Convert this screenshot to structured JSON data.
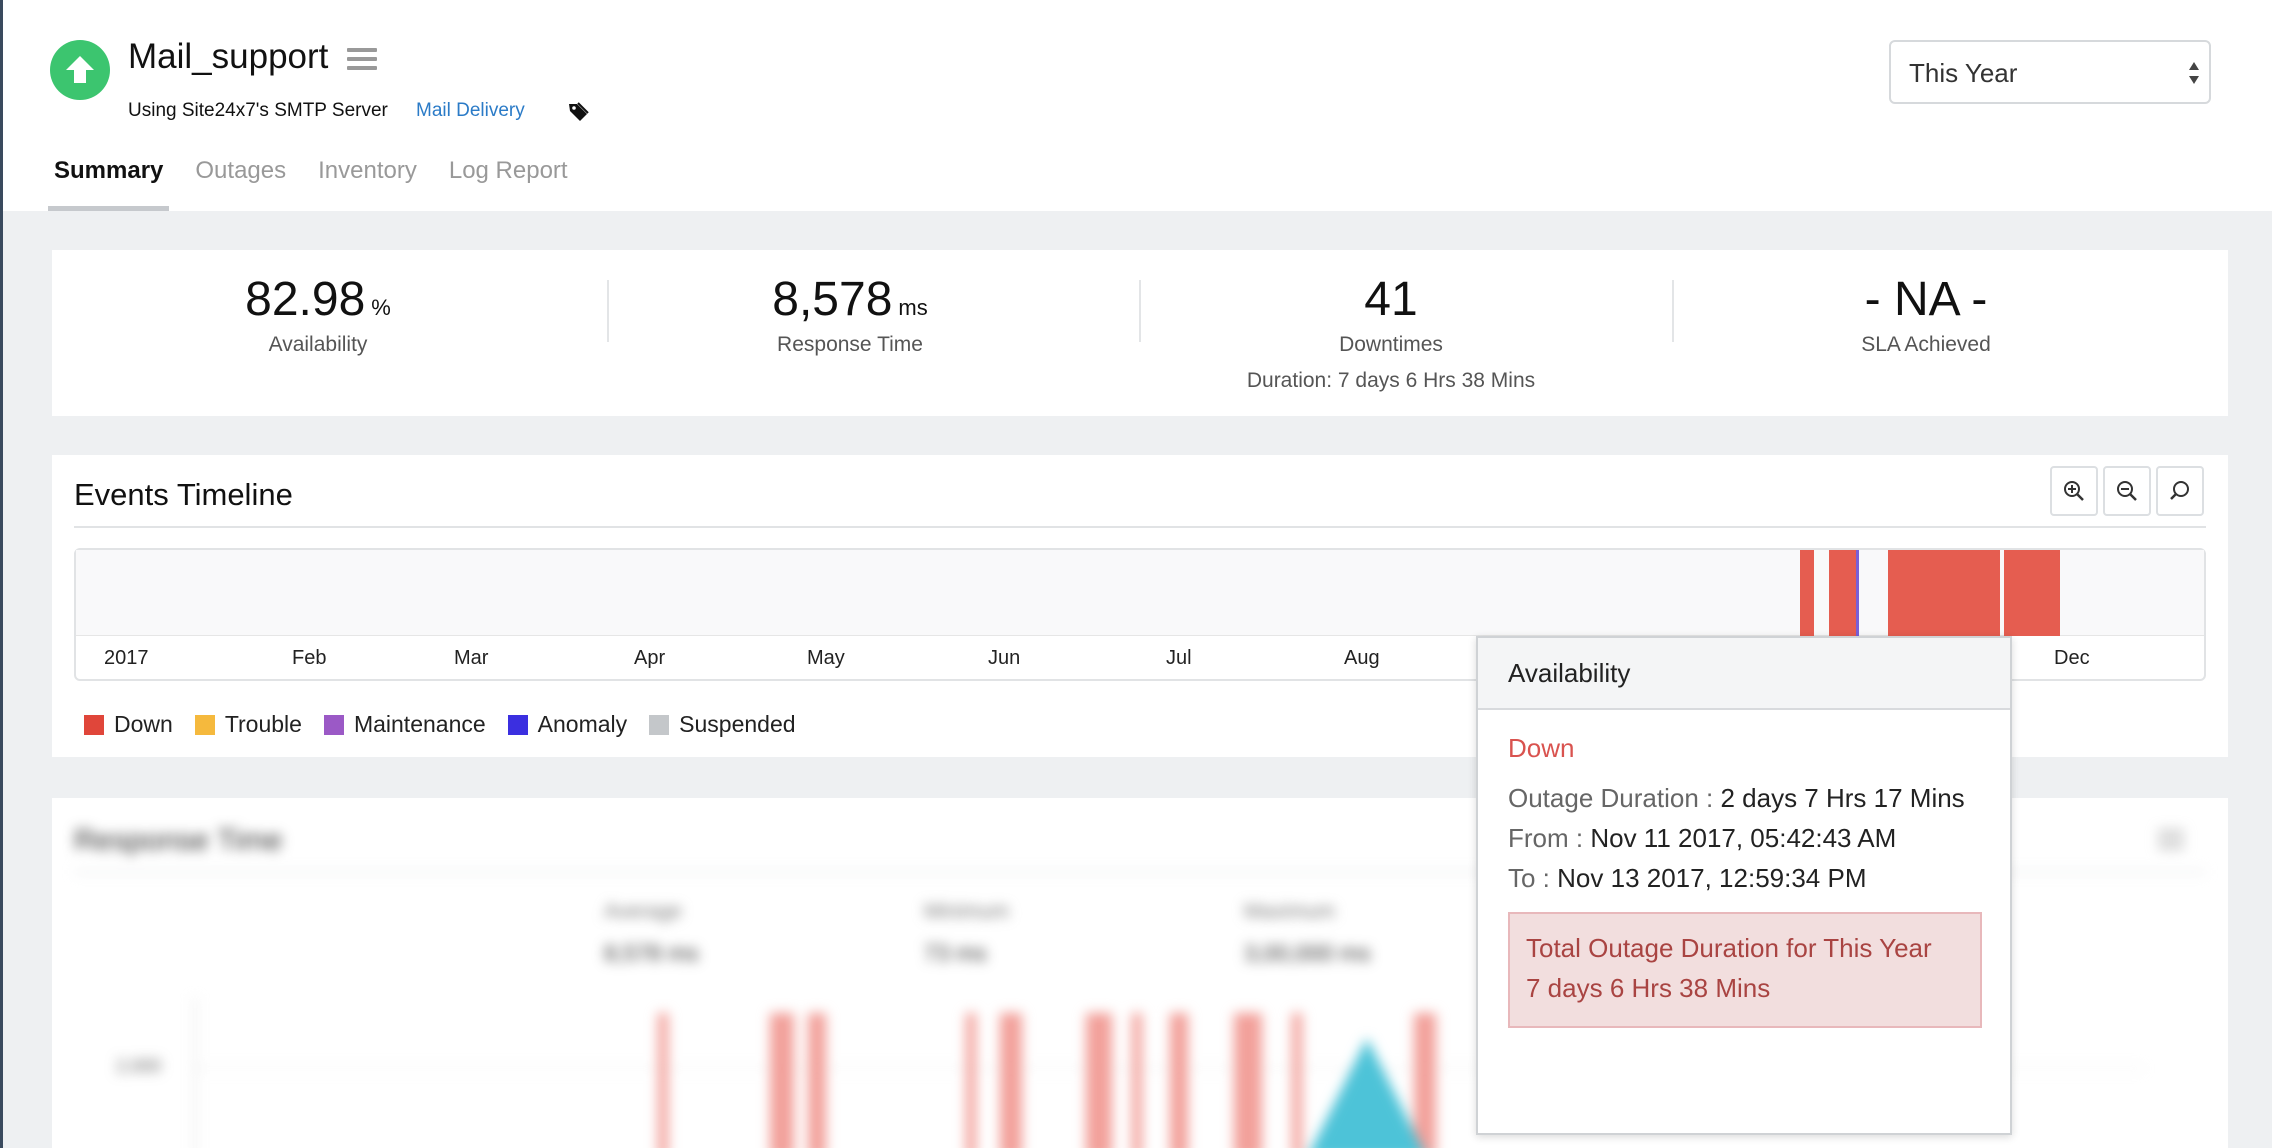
{
  "monitor": {
    "name": "Mail_support",
    "server_text": "Using Site24x7's SMTP Server",
    "type_link": "Mail Delivery",
    "status_color": "#3cc56f"
  },
  "tabs": [
    "Summary",
    "Outages",
    "Inventory",
    "Log Report"
  ],
  "period": {
    "selected": "This Year"
  },
  "stats": {
    "availability": {
      "value": "82.98",
      "unit": "%",
      "label": "Availability"
    },
    "response_time": {
      "value": "8,578",
      "unit": "ms",
      "label": "Response Time"
    },
    "downtimes": {
      "value": "41",
      "label": "Downtimes",
      "duration": "Duration: 7 days 6 Hrs 38 Mins"
    },
    "sla": {
      "value": "- NA -",
      "label": "SLA Achieved"
    }
  },
  "events_timeline": {
    "title": "Events Timeline",
    "months": [
      "2017",
      "Feb",
      "Mar",
      "Apr",
      "May",
      "Jun",
      "Jul",
      "Aug",
      "Dec"
    ],
    "legend": [
      {
        "label": "Down",
        "color": "#e0463a"
      },
      {
        "label": "Trouble",
        "color": "#f5b93d"
      },
      {
        "label": "Maintenance",
        "color": "#9b59c6"
      },
      {
        "label": "Anomaly",
        "color": "#3b2fe0"
      },
      {
        "label": "Suspended",
        "color": "#c4c7ca"
      }
    ],
    "colors": {
      "down": "#e55d50",
      "anomaly": "#7a5fd6"
    }
  },
  "response_time_card": {
    "title": "Response Time",
    "stats": [
      {
        "label": "Average",
        "value": "8,578 ms"
      },
      {
        "label": "Minimum",
        "value": "73 ms"
      },
      {
        "label": "Maximum",
        "value": "3,00,000 ms"
      }
    ],
    "ytick": "2,000"
  },
  "tooltip": {
    "title": "Availability",
    "status": "Down",
    "outage_duration_label": "Outage Duration :",
    "outage_duration_value": "2 days 7 Hrs 17 Mins",
    "from_label": "From :",
    "from_value": "Nov 11 2017, 05:42:43 AM",
    "to_label": "To :",
    "to_value": "Nov 13 2017, 12:59:34 PM",
    "total_line1": "Total Outage Duration for This Year",
    "total_line2": "7 days 6 Hrs 38 Mins"
  }
}
